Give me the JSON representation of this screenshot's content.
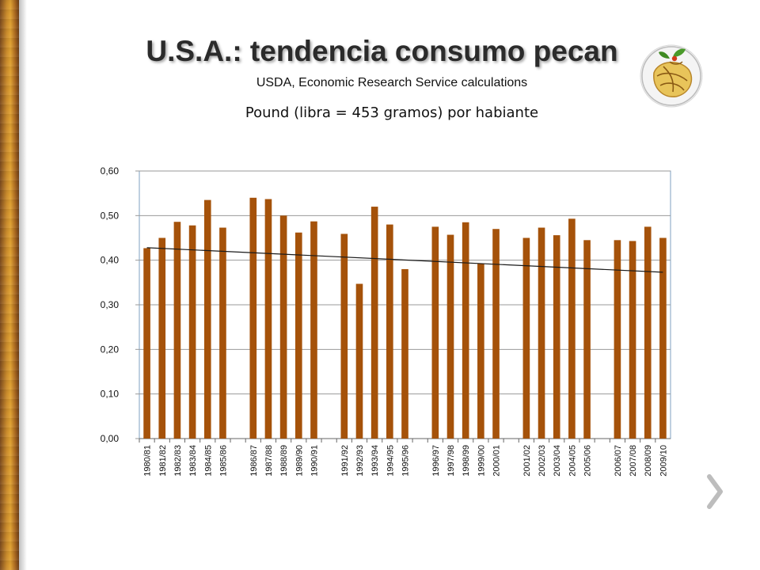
{
  "slide": {
    "title": "U.S.A.: tendencia consumo pecan",
    "subtitle": "USDA, Economic Research Service calculations",
    "unit_label": "Pound (libra = 453 gramos) por habiante"
  },
  "colors": {
    "bar": "#A5520A",
    "trendline": "#1a1a1a",
    "grid": "#9a9a9a",
    "plot_border": "#7fa0c0",
    "accent_wood": "#c98a2c"
  },
  "icons": {
    "logo": "pecan-globe-logo-icon",
    "next": "chevron-right-icon"
  },
  "chart_data": {
    "type": "bar",
    "ylim": [
      0,
      0.6
    ],
    "y_ticks": [
      "0,00",
      "0,10",
      "0,20",
      "0,30",
      "0,40",
      "0,50",
      "0,60"
    ],
    "y_tick_values": [
      0,
      0.1,
      0.2,
      0.3,
      0.4,
      0.5,
      0.6
    ],
    "grid": true,
    "categories": [
      "1980/81",
      "1981/82",
      "1982/83",
      "1983/84",
      "1984/85",
      "1985/86",
      "",
      "1986/87",
      "1987/88",
      "1988/89",
      "1989/90",
      "1990/91",
      "",
      "1991/92",
      "1992/93",
      "1993/94",
      "1994/95",
      "1995/96",
      "",
      "1996/97",
      "1997/98",
      "1998/99",
      "1999/00",
      "2000/01",
      "",
      "2001/02",
      "2002/03",
      "2003/04",
      "2004/05",
      "2005/06",
      "",
      "2006/07",
      "2007/08",
      "2008/09",
      "2009/10"
    ],
    "values": [
      0.427,
      0.45,
      0.486,
      0.478,
      0.535,
      0.473,
      null,
      0.54,
      0.537,
      0.5,
      0.462,
      0.487,
      null,
      0.459,
      0.347,
      0.52,
      0.48,
      0.38,
      null,
      0.475,
      0.457,
      0.485,
      0.392,
      0.47,
      null,
      0.45,
      0.473,
      0.456,
      0.493,
      0.445,
      null,
      0.445,
      0.443,
      0.475,
      0.45
    ],
    "trendline": {
      "type": "linear",
      "start": 0.428,
      "end": 0.373
    }
  }
}
